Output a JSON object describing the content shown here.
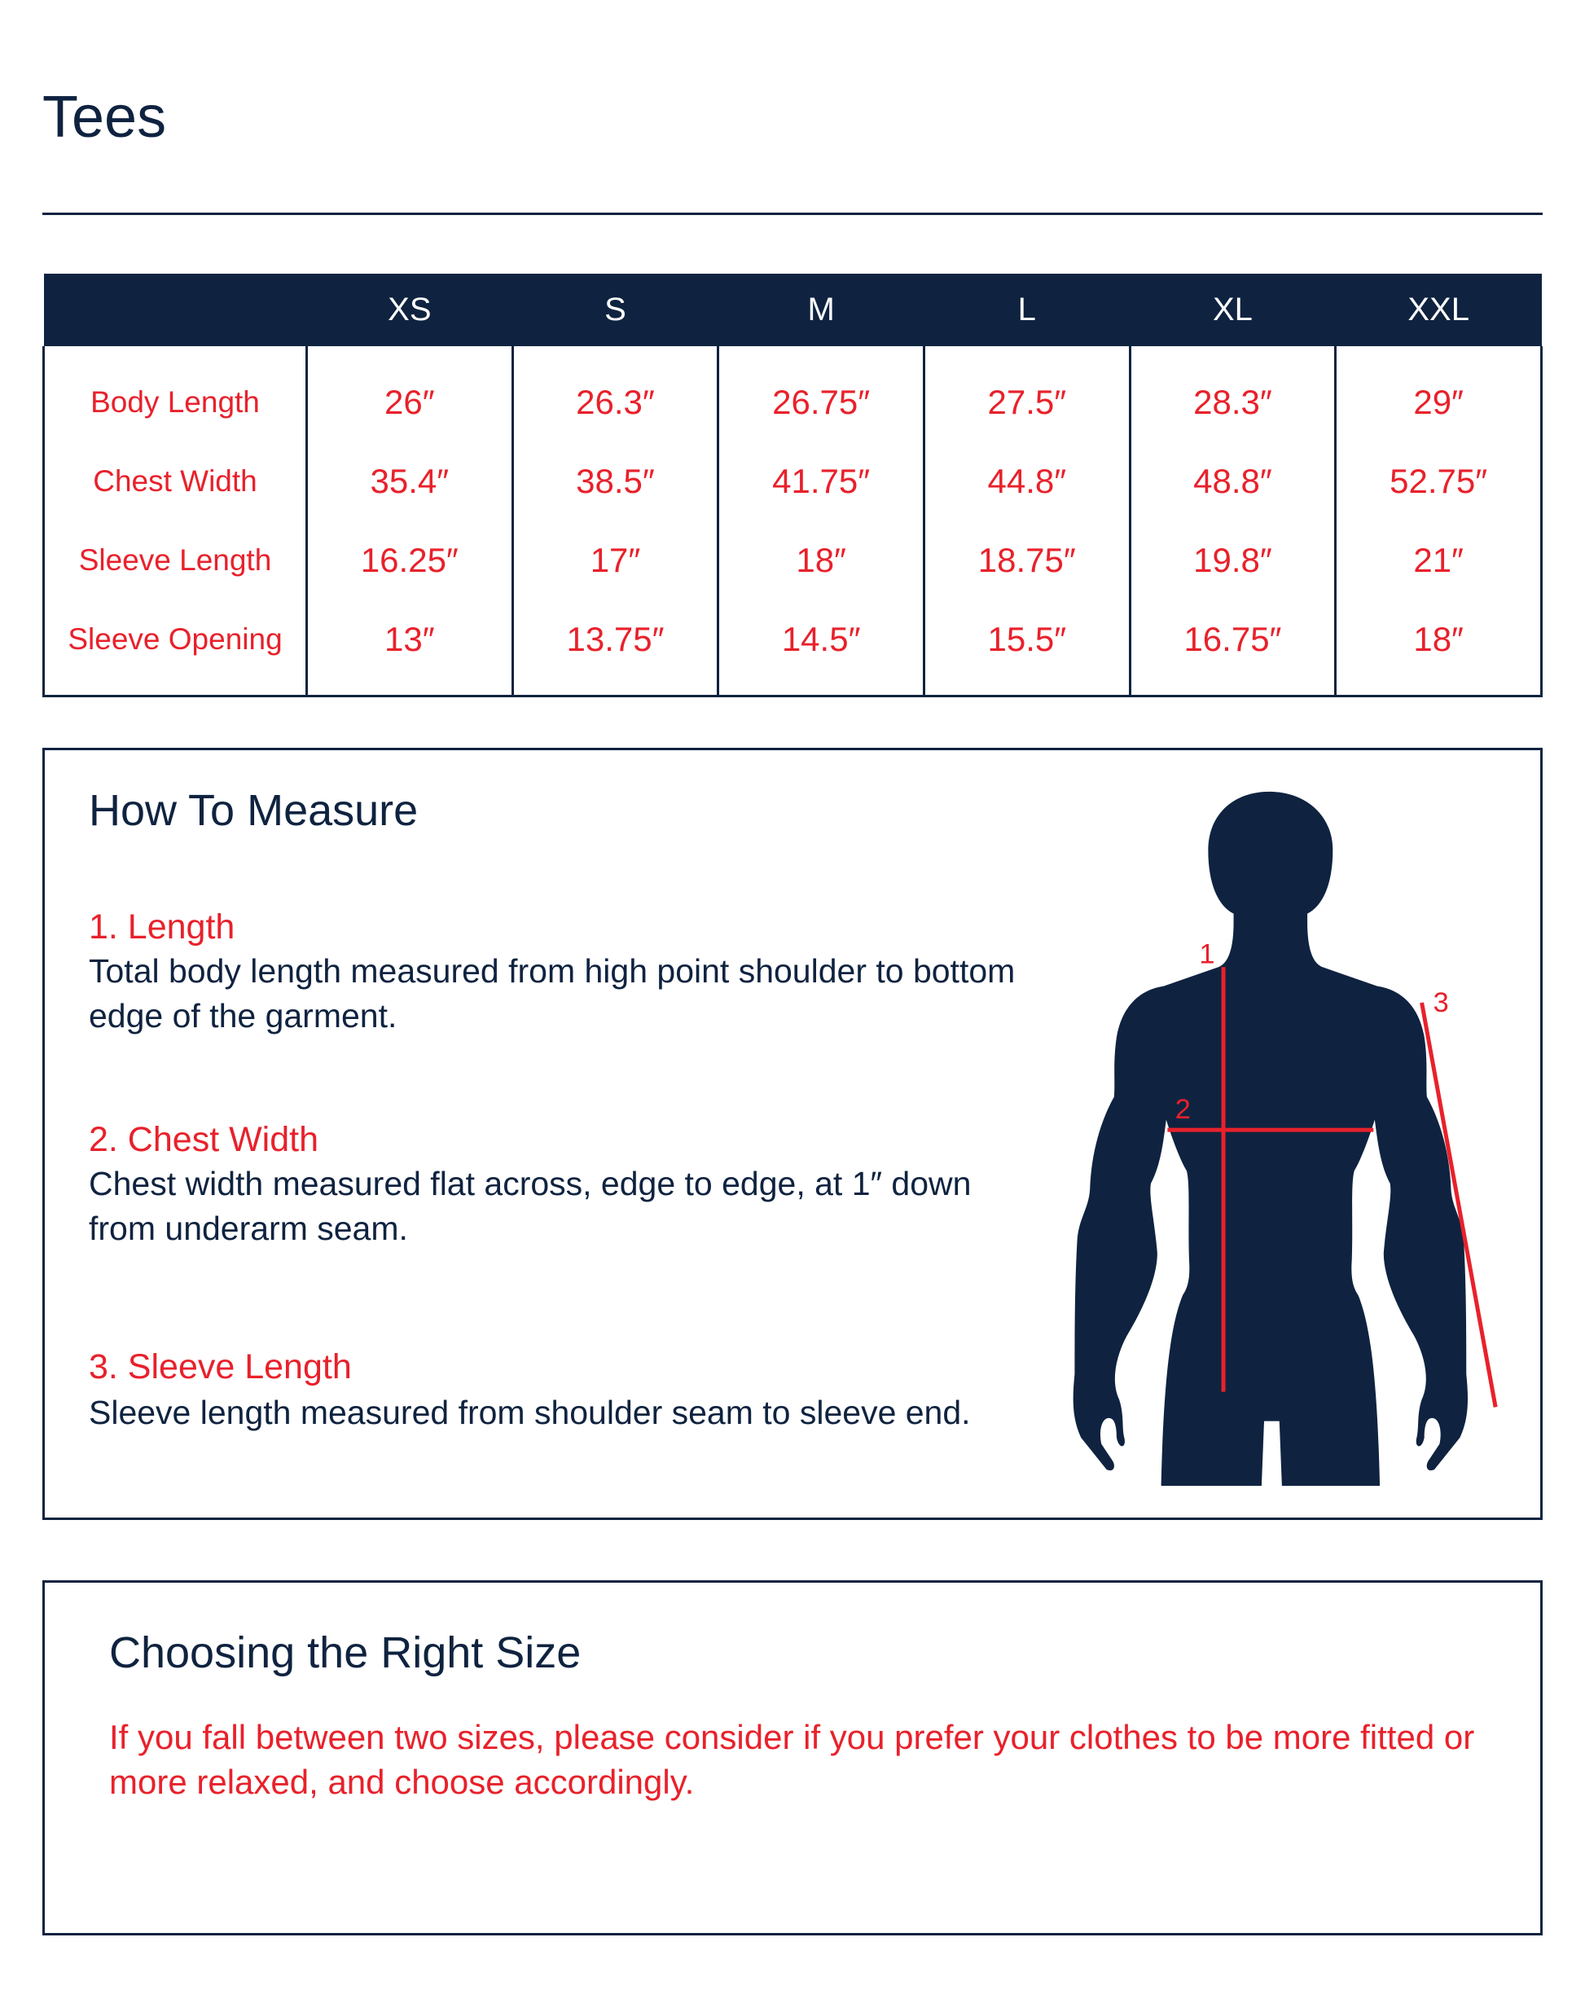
{
  "title": "Tees",
  "table": {
    "sizes": [
      "XS",
      "S",
      "M",
      "L",
      "XL",
      "XXL"
    ],
    "rows": [
      {
        "label": "Body Length",
        "values": [
          "26″",
          "26.3″",
          "26.75″",
          "27.5″",
          "28.3″",
          "29″"
        ]
      },
      {
        "label": "Chest Width",
        "values": [
          "35.4″",
          "38.5″",
          "41.75″",
          "44.8″",
          "48.8″",
          "52.75″"
        ]
      },
      {
        "label": "Sleeve Length",
        "values": [
          "16.25″",
          "17″",
          "18″",
          "18.75″",
          "19.8″",
          "21″"
        ]
      },
      {
        "label": "Sleeve Opening",
        "values": [
          "13″",
          "13.75″",
          "14.5″",
          "15.5″",
          "16.75″",
          "18″"
        ]
      }
    ]
  },
  "measure": {
    "heading": "How To Measure",
    "sections": [
      {
        "title": "1. Length",
        "text": "Total body length measured from high point shoulder to bottom edge of the garment."
      },
      {
        "title": "2. Chest Width",
        "text": "Chest width measured flat across, edge to edge, at 1″ down from underarm seam."
      },
      {
        "title": "3. Sleeve Length",
        "text": "Sleeve length measured from shoulder seam to sleeve end."
      }
    ],
    "figure_labels": [
      "1",
      "2",
      "3"
    ]
  },
  "choose": {
    "heading": "Choosing the Right Size",
    "text": "If you fall between two sizes, please consider if you prefer your clothes to be more fitted or more relaxed, and choose accordingly."
  },
  "colors": {
    "navy": "#0f2340",
    "red": "#e8212b"
  }
}
